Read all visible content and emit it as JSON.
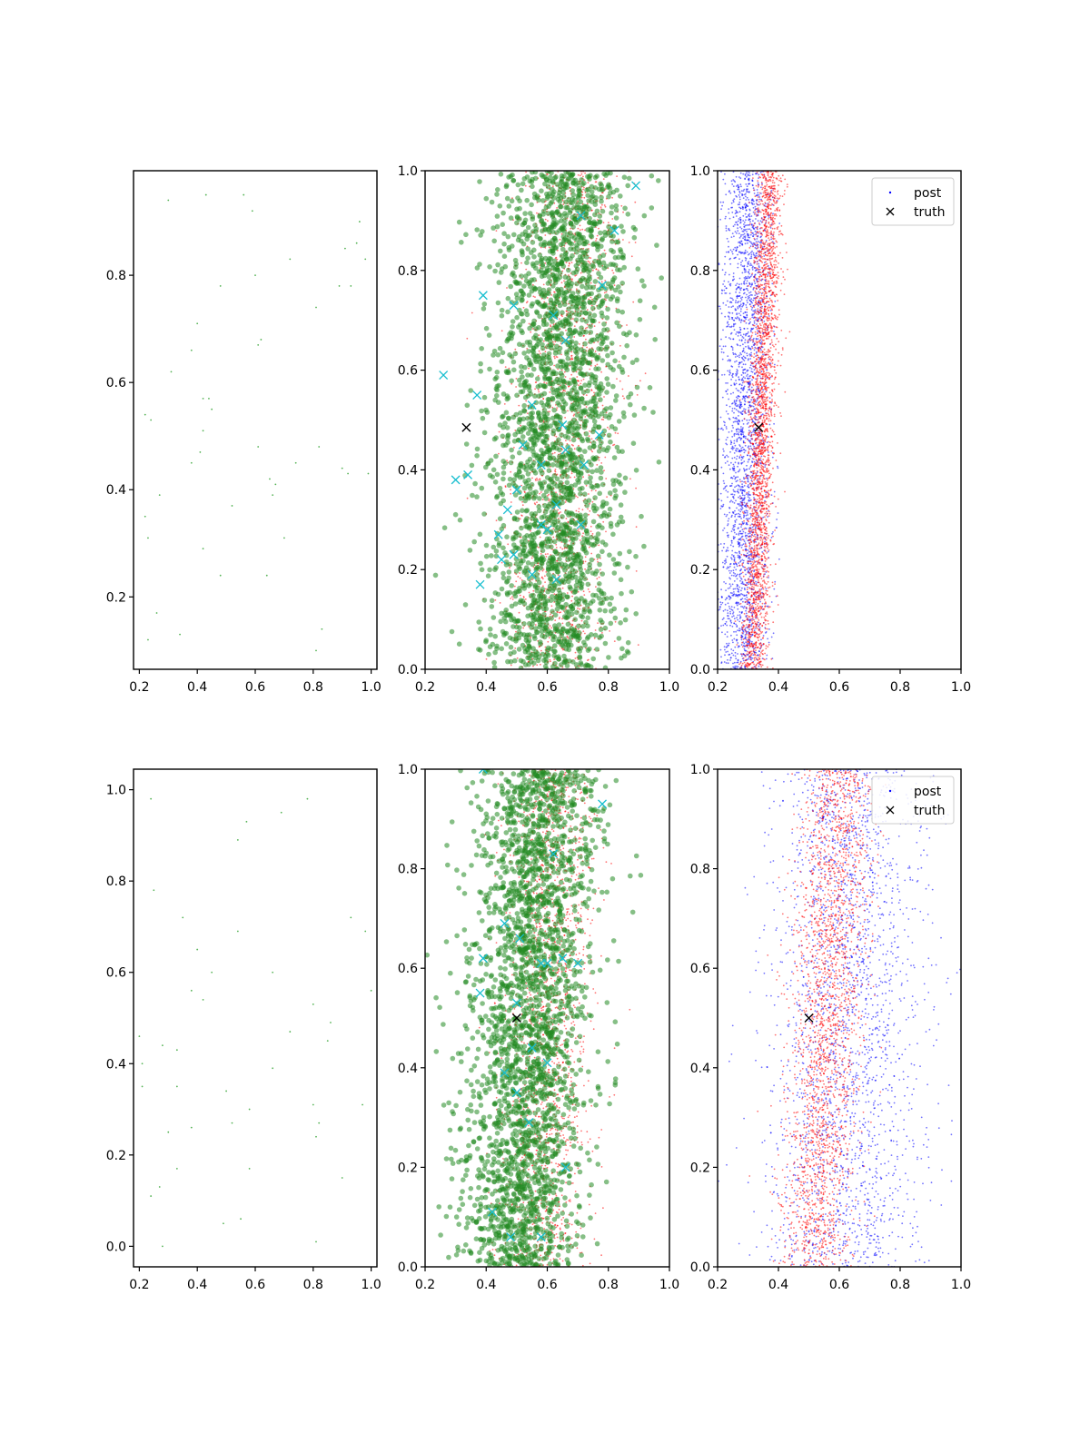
{
  "chart_data": [
    {
      "panel": "top-left",
      "type": "scatter",
      "xlim": [
        0.18,
        1.02
      ],
      "ylim": [
        0.065,
        0.995
      ],
      "xticks": [
        0.2,
        0.4,
        0.6,
        0.8,
        1.0
      ],
      "yticks": [
        0.2,
        0.4,
        0.6,
        0.8
      ],
      "series": [
        {
          "role": "points",
          "color": "#2ca02c",
          "marker": "dot",
          "size": "tiny",
          "x": [
            0.3,
            0.43,
            0.56,
            0.59,
            0.96,
            0.95,
            0.91,
            0.98,
            0.89,
            0.93,
            0.48,
            0.6,
            0.72,
            0.81,
            0.4,
            0.38,
            0.62,
            0.61,
            0.31,
            0.42,
            0.44,
            0.45,
            0.22,
            0.24,
            0.42,
            0.41,
            0.38,
            0.61,
            0.82,
            0.74,
            0.9,
            0.92,
            0.99,
            0.65,
            0.67,
            0.66,
            0.27,
            0.52,
            0.22,
            0.23,
            0.42,
            0.7,
            0.48,
            0.64,
            0.26,
            0.83,
            0.34,
            0.23,
            0.81
          ],
          "y": [
            0.94,
            0.95,
            0.95,
            0.92,
            0.9,
            0.86,
            0.85,
            0.83,
            0.78,
            0.78,
            0.78,
            0.8,
            0.83,
            0.74,
            0.71,
            0.66,
            0.68,
            0.67,
            0.62,
            0.57,
            0.57,
            0.55,
            0.54,
            0.53,
            0.51,
            0.47,
            0.45,
            0.48,
            0.48,
            0.45,
            0.44,
            0.43,
            0.43,
            0.42,
            0.41,
            0.39,
            0.39,
            0.37,
            0.35,
            0.31,
            0.29,
            0.31,
            0.24,
            0.24,
            0.17,
            0.14,
            0.13,
            0.12,
            0.1
          ]
        }
      ]
    },
    {
      "panel": "top-middle",
      "type": "scatter",
      "xlim": [
        0.2,
        1.0
      ],
      "ylim": [
        0.0,
        1.0
      ],
      "xticks": [
        0.2,
        0.4,
        0.6,
        0.8,
        1.0
      ],
      "yticks": [
        0.0,
        0.2,
        0.4,
        0.6,
        0.8,
        1.0
      ],
      "series": [
        {
          "role": "background",
          "color": "#ff0000",
          "marker": "dot",
          "count": 1700,
          "x_center_bottom": 0.62,
          "x_center_top": 0.7,
          "x_spread": 0.08
        },
        {
          "role": "samples",
          "color": "#228b22",
          "marker": "circle",
          "count": 2600,
          "x_center_bottom": 0.6,
          "x_center_top": 0.66,
          "x_spread": 0.11
        },
        {
          "role": "crosses",
          "color": "#17becf",
          "marker": "x",
          "x": [
            0.89,
            0.82,
            0.78,
            0.39,
            0.49,
            0.71,
            0.62,
            0.66,
            0.26,
            0.37,
            0.77,
            0.3,
            0.34,
            0.5,
            0.55,
            0.65,
            0.72,
            0.63,
            0.47,
            0.58,
            0.71,
            0.49,
            0.45,
            0.55,
            0.6,
            0.63,
            0.38,
            0.44,
            0.66,
            0.52,
            0.58
          ],
          "y": [
            0.97,
            0.88,
            0.77,
            0.75,
            0.73,
            0.91,
            0.71,
            0.66,
            0.59,
            0.55,
            0.47,
            0.38,
            0.39,
            0.36,
            0.53,
            0.49,
            0.41,
            0.33,
            0.32,
            0.29,
            0.29,
            0.23,
            0.22,
            0.19,
            0.28,
            0.18,
            0.17,
            0.27,
            0.44,
            0.45,
            0.41
          ]
        },
        {
          "role": "truth",
          "color": "#000000",
          "marker": "x",
          "x": [
            0.335
          ],
          "y": [
            0.485
          ]
        }
      ]
    },
    {
      "panel": "top-right",
      "type": "scatter",
      "xlim": [
        0.2,
        1.0
      ],
      "ylim": [
        0.0,
        1.0
      ],
      "xticks": [
        0.2,
        0.4,
        0.6,
        0.8,
        1.0
      ],
      "yticks": [
        0.0,
        0.2,
        0.4,
        0.6,
        0.8,
        1.0
      ],
      "legend": {
        "placement": "top-right",
        "entries": [
          "post",
          "truth"
        ]
      },
      "series": [
        {
          "name": "post",
          "color": "#0000ff",
          "marker": "dot",
          "count": 2600,
          "x_center_bottom": 0.28,
          "x_center_top": 0.3,
          "x_spread": 0.04
        },
        {
          "role": "red-points",
          "color": "#ff0000",
          "marker": "dot",
          "count": 2600,
          "x_center_bottom": 0.32,
          "x_center_top": 0.37,
          "x_spread": 0.022
        },
        {
          "name": "truth",
          "color": "#000000",
          "marker": "x",
          "x": [
            0.335
          ],
          "y": [
            0.485
          ]
        }
      ]
    },
    {
      "panel": "bottom-left",
      "type": "scatter",
      "xlim": [
        0.18,
        1.02
      ],
      "ylim": [
        -0.045,
        1.045
      ],
      "xticks": [
        0.2,
        0.4,
        0.6,
        0.8,
        1.0
      ],
      "yticks": [
        0.0,
        0.2,
        0.4,
        0.6,
        0.8,
        1.0
      ],
      "series": [
        {
          "role": "points",
          "color": "#2ca02c",
          "marker": "dot",
          "size": "tiny",
          "x": [
            0.24,
            0.69,
            0.78,
            0.57,
            0.54,
            0.25,
            0.35,
            0.54,
            0.93,
            0.98,
            0.4,
            0.45,
            0.66,
            0.38,
            0.42,
            1.0,
            0.8,
            0.72,
            0.86,
            0.2,
            0.28,
            0.33,
            0.21,
            0.66,
            0.85,
            0.33,
            0.5,
            0.21,
            0.58,
            0.8,
            0.38,
            0.3,
            0.81,
            0.52,
            0.97,
            0.82,
            0.58,
            0.33,
            0.9,
            0.27,
            0.24,
            0.55,
            0.49,
            0.28,
            0.81
          ],
          "y": [
            0.98,
            0.95,
            0.98,
            0.93,
            0.89,
            0.78,
            0.72,
            0.69,
            0.72,
            0.69,
            0.65,
            0.6,
            0.6,
            0.56,
            0.54,
            0.56,
            0.53,
            0.47,
            0.49,
            0.46,
            0.44,
            0.43,
            0.4,
            0.39,
            0.45,
            0.35,
            0.34,
            0.35,
            0.3,
            0.31,
            0.26,
            0.25,
            0.24,
            0.27,
            0.31,
            0.27,
            0.17,
            0.17,
            0.15,
            0.13,
            0.11,
            0.06,
            0.05,
            0.0,
            0.01
          ]
        }
      ]
    },
    {
      "panel": "bottom-middle",
      "type": "scatter",
      "xlim": [
        0.2,
        1.0
      ],
      "ylim": [
        0.0,
        1.0
      ],
      "xticks": [
        0.2,
        0.4,
        0.6,
        0.8,
        1.0
      ],
      "yticks": [
        0.0,
        0.2,
        0.4,
        0.6,
        0.8,
        1.0
      ],
      "series": [
        {
          "role": "background",
          "color": "#ff0000",
          "marker": "dot",
          "count": 1700,
          "x_center_bottom": 0.58,
          "x_center_top": 0.62,
          "x_spread": 0.07
        },
        {
          "role": "samples",
          "color": "#228b22",
          "marker": "circle",
          "count": 2600,
          "x_center_bottom": 0.5,
          "x_center_top": 0.58,
          "x_spread": 0.1
        },
        {
          "role": "crosses",
          "color": "#17becf",
          "marker": "x",
          "x": [
            0.78,
            0.39,
            0.46,
            0.51,
            0.6,
            0.65,
            0.62,
            0.39,
            0.38,
            0.5,
            0.7,
            0.58,
            0.55,
            0.46,
            0.5,
            0.54,
            0.6,
            0.42,
            0.58,
            0.48,
            0.66
          ],
          "y": [
            0.93,
            1.0,
            0.69,
            0.66,
            0.61,
            0.62,
            0.83,
            0.62,
            0.55,
            0.53,
            0.61,
            0.61,
            0.44,
            0.39,
            0.35,
            0.29,
            0.41,
            0.11,
            0.06,
            0.06,
            0.2
          ]
        },
        {
          "role": "truth",
          "color": "#000000",
          "marker": "x",
          "x": [
            0.5
          ],
          "y": [
            0.5
          ]
        }
      ]
    },
    {
      "panel": "bottom-right",
      "type": "scatter",
      "xlim": [
        0.2,
        1.0
      ],
      "ylim": [
        0.0,
        1.0
      ],
      "xticks": [
        0.2,
        0.4,
        0.6,
        0.8,
        1.0
      ],
      "yticks": [
        0.0,
        0.2,
        0.4,
        0.6,
        0.8,
        1.0
      ],
      "legend": {
        "placement": "top-right",
        "entries": [
          "post",
          "truth"
        ]
      },
      "series": [
        {
          "name": "post",
          "color": "#0000ff",
          "marker": "dot",
          "count": 2300,
          "x_center_bottom": 0.6,
          "x_center_top": 0.64,
          "x_spread": 0.13
        },
        {
          "role": "red-points",
          "color": "#ff0000",
          "marker": "dot",
          "count": 2300,
          "x_center_bottom": 0.52,
          "x_center_top": 0.6,
          "x_spread": 0.06
        },
        {
          "name": "truth",
          "color": "#000000",
          "marker": "x",
          "x": [
            0.5
          ],
          "y": [
            0.5
          ]
        }
      ]
    }
  ]
}
